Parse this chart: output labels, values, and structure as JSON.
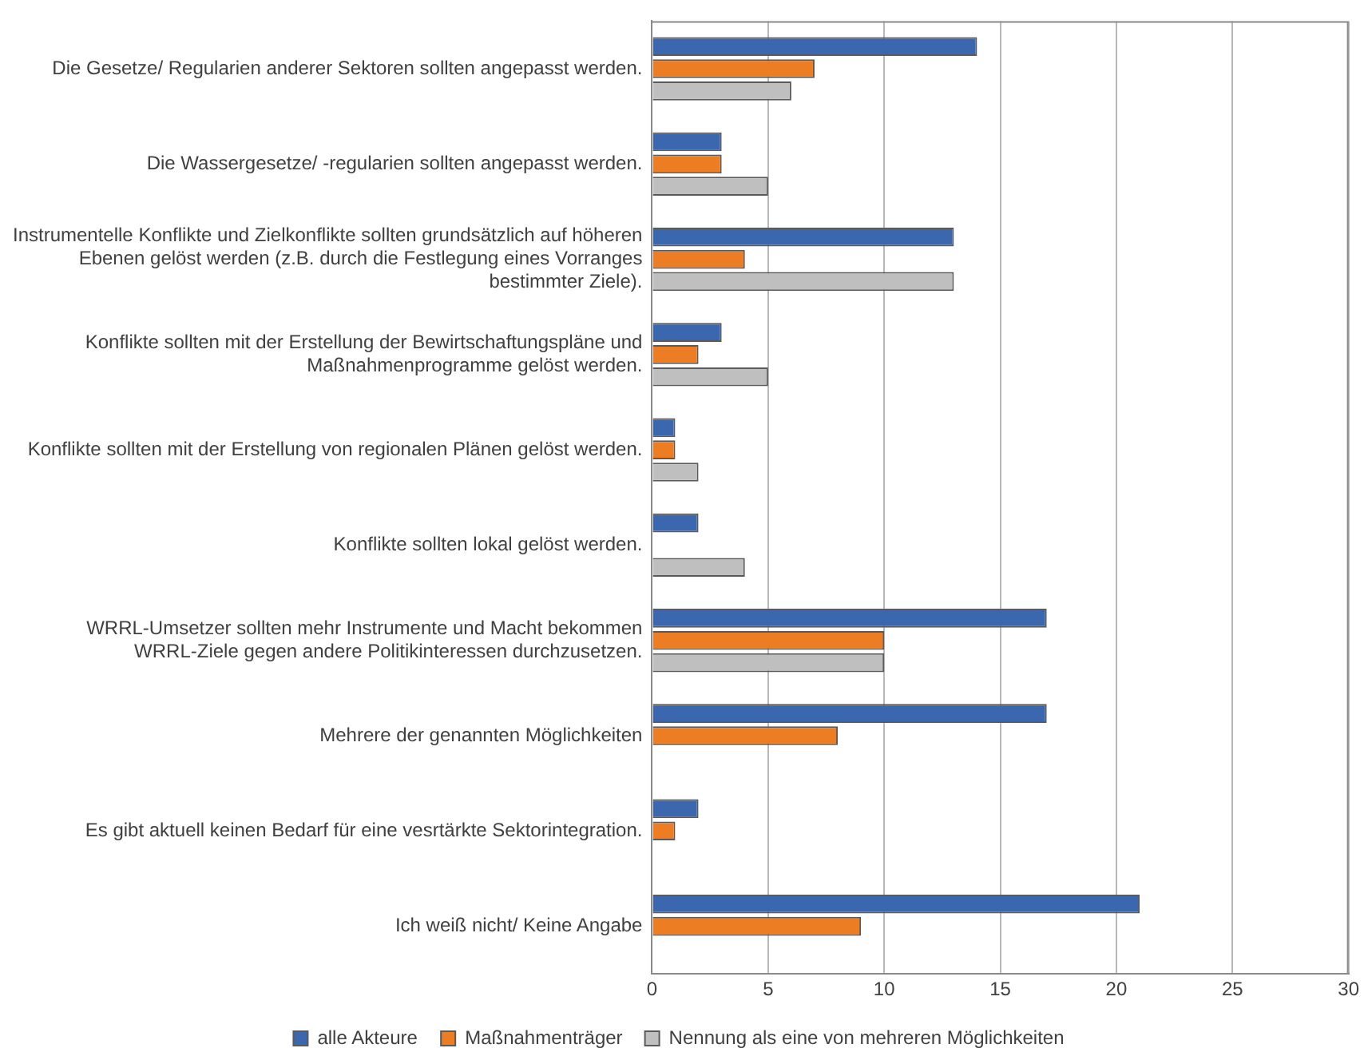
{
  "chart_data": {
    "type": "bar",
    "orientation": "horizontal",
    "categories": [
      "Die Gesetze/ Regularien anderer Sektoren sollten angepasst werden.",
      "Die Wassergesetze/ -regularien sollten angepasst werden.",
      "Instrumentelle Konflikte und Zielkonflikte sollten grundsätzlich auf höheren Ebenen gelöst werden (z.B. durch die Festlegung eines Vorranges bestimmter Ziele).",
      "Konflikte sollten mit der Erstellung der Bewirtschaftungspläne und Maßnahmenprogramme gelöst werden.",
      "Konflikte sollten mit der Erstellung von regionalen Plänen gelöst werden.",
      "Konflikte sollten lokal gelöst werden.",
      "WRRL-Umsetzer sollten mehr Instrumente und Macht bekommen WRRL-Ziele gegen andere Politikinteressen durchzusetzen.",
      "Mehrere der genannten Möglichkeiten",
      "Es gibt aktuell keinen Bedarf für eine vesrtärkte Sektorintegration.",
      "Ich weiß nicht/ Keine Angabe"
    ],
    "series": [
      {
        "name": "alle Akteure",
        "color": "#3a67ae",
        "values": [
          14,
          3,
          13,
          3,
          1,
          2,
          17,
          17,
          2,
          21
        ]
      },
      {
        "name": "Maßnahmenträger",
        "color": "#ed7d22",
        "values": [
          7,
          3,
          4,
          2,
          1,
          null,
          10,
          8,
          1,
          9
        ]
      },
      {
        "name": "Nennung als eine von mehreren Möglichkeiten",
        "color": "#bfbfbf",
        "values": [
          6,
          5,
          13,
          5,
          2,
          4,
          10,
          null,
          null,
          null
        ]
      }
    ],
    "xlim": [
      0,
      30
    ],
    "xticks": [
      0,
      5,
      10,
      15,
      20,
      25,
      30
    ],
    "grid": "x",
    "legend": "bottom"
  }
}
